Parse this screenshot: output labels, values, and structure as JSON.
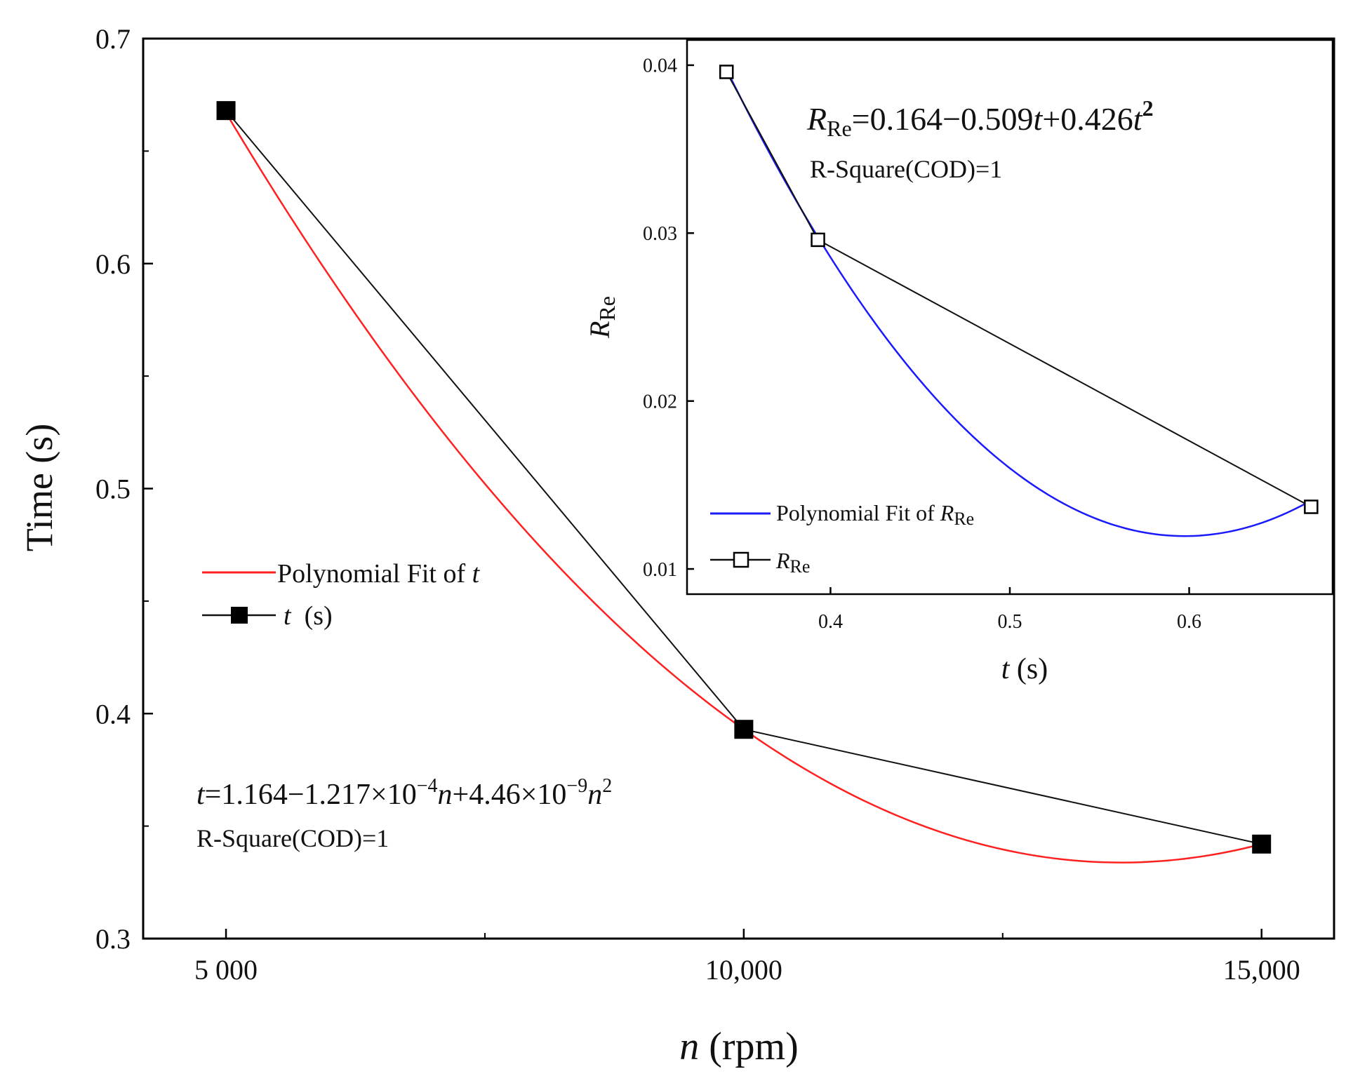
{
  "chart_data": [
    {
      "id": "main",
      "type": "line",
      "title": "",
      "xlabel": {
        "var": "n",
        "rest": " (rpm)"
      },
      "ylabel": "Time  (s)",
      "xlim": [
        4200,
        15700
      ],
      "ylim": [
        0.3,
        0.7
      ],
      "xticks": [
        {
          "value": 5000,
          "label": "5 000"
        },
        {
          "value": 10000,
          "label": "10,000"
        },
        {
          "value": 15000,
          "label": "15,000"
        }
      ],
      "xminor": [
        7500,
        12500
      ],
      "yticks": [
        {
          "value": 0.3,
          "label": "0.3"
        },
        {
          "value": 0.4,
          "label": "0.4"
        },
        {
          "value": 0.5,
          "label": "0.5"
        },
        {
          "value": 0.6,
          "label": "0.6"
        },
        {
          "value": 0.7,
          "label": "0.7"
        }
      ],
      "yminor": [
        0.35,
        0.45,
        0.55,
        0.65
      ],
      "series": [
        {
          "name": "t (s)",
          "kind": "data",
          "color": "#000000",
          "x": [
            5000,
            10000,
            15000
          ],
          "y": [
            0.668,
            0.393,
            0.342
          ]
        },
        {
          "name": "Polynomial Fit of t",
          "kind": "fit",
          "color": "#ff2020",
          "coeffs": [
            1.164,
            -0.0001217,
            4.46e-09
          ],
          "xrange": [
            5000,
            15000
          ]
        }
      ],
      "legend": {
        "position": "center-left",
        "fit_label": "Polynomial Fit of ",
        "fit_var": "t",
        "data_var": "t",
        "data_rest": "  (s)"
      },
      "equation": {
        "t1": "t",
        "t2": "=1.164−1.217×10",
        "s1": "−4",
        "t3": "n",
        "t4": "+4.46×10",
        "s2": "−9",
        "t5": "n",
        "s3": "2"
      },
      "r_square": "R-Square(COD)=1"
    },
    {
      "id": "inset",
      "type": "line",
      "title": "",
      "xlabel": {
        "var": "t",
        "rest": " (s)"
      },
      "ylabel": {
        "var": "R",
        "sub": "Re"
      },
      "xlim": [
        0.32,
        0.68
      ],
      "ylim": [
        0.0085,
        0.0415
      ],
      "xticks": [
        {
          "value": 0.4,
          "label": "0.4"
        },
        {
          "value": 0.5,
          "label": "0.5"
        },
        {
          "value": 0.6,
          "label": "0.6"
        }
      ],
      "yticks": [
        {
          "value": 0.01,
          "label": "0.01"
        },
        {
          "value": 0.02,
          "label": "0.02"
        },
        {
          "value": 0.03,
          "label": "0.03"
        },
        {
          "value": 0.04,
          "label": "0.04"
        }
      ],
      "series": [
        {
          "name": "RRe",
          "kind": "data",
          "color": "#000000",
          "x": [
            0.342,
            0.393,
            0.668
          ],
          "y": [
            0.0396,
            0.0296,
            0.0137
          ]
        },
        {
          "name": "Polynomial Fit of RRe",
          "kind": "fit",
          "color": "#1a1aff",
          "coeffs": [
            0.164,
            -0.509,
            0.426
          ],
          "xrange": [
            0.342,
            0.668
          ]
        }
      ],
      "legend": {
        "position": "bottom-left",
        "fit_label": "Polynomial Fit of ",
        "fit_var": "R",
        "fit_sub": "Re",
        "data_var": "R",
        "data_sub": "Re"
      },
      "equation": {
        "t1": "R",
        "s1": "Re",
        "t2": "=0.164−0.509",
        "t3": "t",
        "t4": "+0.426",
        "t5": "t",
        "s2": "2"
      },
      "r_square": "R-Square(COD)=1"
    }
  ]
}
